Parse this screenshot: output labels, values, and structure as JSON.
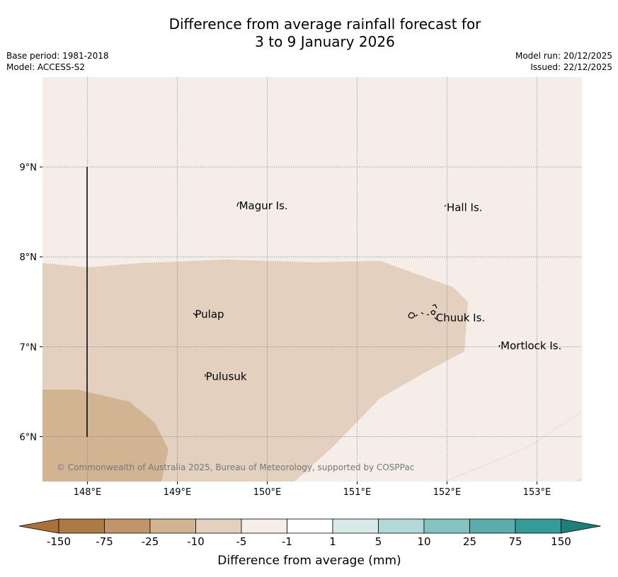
{
  "title_line1": "Difference from average rainfall forecast for",
  "title_line2": "3 to 9 January 2026",
  "base_period": "Base period: 1981-2018",
  "model": "Model: ACCESS-S2",
  "model_run": "Model run: 20/12/2025",
  "issued": "Issued: 22/12/2025",
  "copyright": "© Commonwealth of Australia 2025, Bureau of Meteorology, supported by COSPPac",
  "map": {
    "lon_range": [
      147.5,
      153.5
    ],
    "lat_range": [
      5.5,
      10.0
    ],
    "lon_ticks": [
      {
        "value": 148,
        "label": "148°E"
      },
      {
        "value": 149,
        "label": "149°E"
      },
      {
        "value": 150,
        "label": "150°E"
      },
      {
        "value": 151,
        "label": "151°E"
      },
      {
        "value": 152,
        "label": "152°E"
      },
      {
        "value": 153,
        "label": "153°E"
      }
    ],
    "lat_ticks": [
      {
        "value": 9,
        "label": "9°N"
      },
      {
        "value": 8,
        "label": "8°N"
      },
      {
        "value": 7,
        "label": "7°N"
      },
      {
        "value": 6,
        "label": "6°N"
      }
    ],
    "places": [
      {
        "name": "Magur Is.",
        "lon": 149.67,
        "lat": 8.57
      },
      {
        "name": "Hall Is.",
        "lon": 151.98,
        "lat": 8.55
      },
      {
        "name": "Pulap",
        "lon": 149.18,
        "lat": 7.36
      },
      {
        "name": "Chuuk Is.",
        "lon": 151.86,
        "lat": 7.32
      },
      {
        "name": "Mortlock Is.",
        "lon": 152.58,
        "lat": 7.01
      },
      {
        "name": "Pulusuk",
        "lon": 149.3,
        "lat": 6.67
      }
    ]
  },
  "colorbar": {
    "title": "Difference from average (mm)",
    "labels": [
      "-150",
      "-75",
      "-25",
      "-10",
      "-5",
      "-1",
      "1",
      "5",
      "10",
      "25",
      "75",
      "150"
    ],
    "colors": [
      "#a9713b",
      "#ae7a43",
      "#c1956c",
      "#d2b493",
      "#e3d0be",
      "#f4ede8",
      "#ffffff",
      "#d8ebe9",
      "#b1d8d6",
      "#84c3c0",
      "#5badab",
      "#339a97",
      "#1f7f7c"
    ]
  }
}
